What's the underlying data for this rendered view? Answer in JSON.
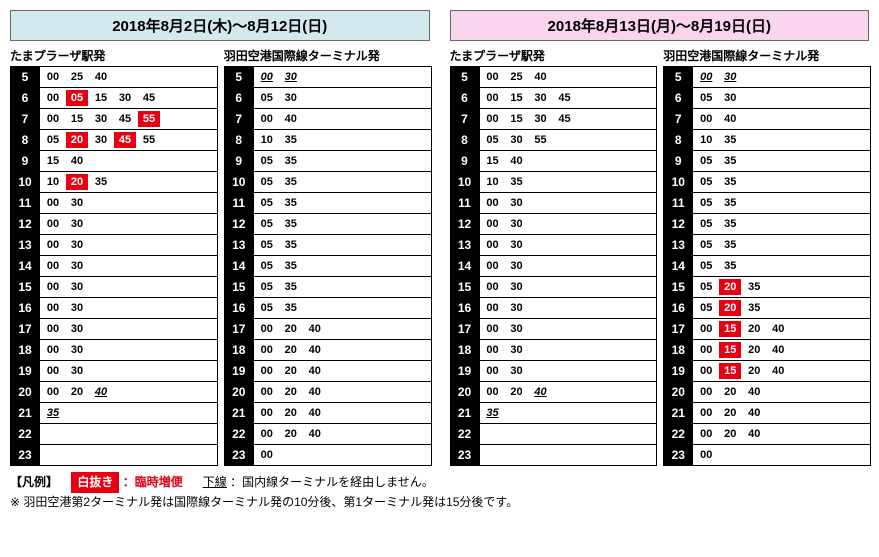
{
  "blocks": [
    {
      "header_class": "blue",
      "date_title": "2018年8月2日(木)～8月12日(日)",
      "columns": [
        {
          "title": "たまプラーザ駅発",
          "rows": [
            {
              "h": "5",
              "m": [
                {
                  "t": "00"
                },
                {
                  "t": "25"
                },
                {
                  "t": "40"
                }
              ]
            },
            {
              "h": "6",
              "m": [
                {
                  "t": "00"
                },
                {
                  "t": "05",
                  "hl": true
                },
                {
                  "t": "15"
                },
                {
                  "t": "30"
                },
                {
                  "t": "45"
                }
              ]
            },
            {
              "h": "7",
              "m": [
                {
                  "t": "00"
                },
                {
                  "t": "15"
                },
                {
                  "t": "30"
                },
                {
                  "t": "45"
                },
                {
                  "t": "55",
                  "hl": true
                }
              ]
            },
            {
              "h": "8",
              "m": [
                {
                  "t": "05"
                },
                {
                  "t": "20",
                  "hl": true
                },
                {
                  "t": "30"
                },
                {
                  "t": "45",
                  "hl": true
                },
                {
                  "t": "55"
                }
              ]
            },
            {
              "h": "9",
              "m": [
                {
                  "t": "15"
                },
                {
                  "t": "40"
                }
              ]
            },
            {
              "h": "10",
              "m": [
                {
                  "t": "10"
                },
                {
                  "t": "20",
                  "hl": true
                },
                {
                  "t": "35"
                }
              ]
            },
            {
              "h": "11",
              "m": [
                {
                  "t": "00"
                },
                {
                  "t": "30"
                }
              ]
            },
            {
              "h": "12",
              "m": [
                {
                  "t": "00"
                },
                {
                  "t": "30"
                }
              ]
            },
            {
              "h": "13",
              "m": [
                {
                  "t": "00"
                },
                {
                  "t": "30"
                }
              ]
            },
            {
              "h": "14",
              "m": [
                {
                  "t": "00"
                },
                {
                  "t": "30"
                }
              ]
            },
            {
              "h": "15",
              "m": [
                {
                  "t": "00"
                },
                {
                  "t": "30"
                }
              ]
            },
            {
              "h": "16",
              "m": [
                {
                  "t": "00"
                },
                {
                  "t": "30"
                }
              ]
            },
            {
              "h": "17",
              "m": [
                {
                  "t": "00"
                },
                {
                  "t": "30"
                }
              ]
            },
            {
              "h": "18",
              "m": [
                {
                  "t": "00"
                },
                {
                  "t": "30"
                }
              ]
            },
            {
              "h": "19",
              "m": [
                {
                  "t": "00"
                },
                {
                  "t": "30"
                }
              ]
            },
            {
              "h": "20",
              "m": [
                {
                  "t": "00"
                },
                {
                  "t": "20"
                },
                {
                  "t": "40",
                  "u": true
                }
              ]
            },
            {
              "h": "21",
              "m": [
                {
                  "t": "35",
                  "u": true
                }
              ]
            },
            {
              "h": "22",
              "m": []
            },
            {
              "h": "23",
              "m": []
            }
          ]
        },
        {
          "title": "羽田空港国際線ターミナル発",
          "rows": [
            {
              "h": "5",
              "m": [
                {
                  "t": "00",
                  "u": true
                },
                {
                  "t": "30",
                  "u": true
                }
              ]
            },
            {
              "h": "6",
              "m": [
                {
                  "t": "05"
                },
                {
                  "t": "30"
                }
              ]
            },
            {
              "h": "7",
              "m": [
                {
                  "t": "00"
                },
                {
                  "t": "40"
                }
              ]
            },
            {
              "h": "8",
              "m": [
                {
                  "t": "10"
                },
                {
                  "t": "35"
                }
              ]
            },
            {
              "h": "9",
              "m": [
                {
                  "t": "05"
                },
                {
                  "t": "35"
                }
              ]
            },
            {
              "h": "10",
              "m": [
                {
                  "t": "05"
                },
                {
                  "t": "35"
                }
              ]
            },
            {
              "h": "11",
              "m": [
                {
                  "t": "05"
                },
                {
                  "t": "35"
                }
              ]
            },
            {
              "h": "12",
              "m": [
                {
                  "t": "05"
                },
                {
                  "t": "35"
                }
              ]
            },
            {
              "h": "13",
              "m": [
                {
                  "t": "05"
                },
                {
                  "t": "35"
                }
              ]
            },
            {
              "h": "14",
              "m": [
                {
                  "t": "05"
                },
                {
                  "t": "35"
                }
              ]
            },
            {
              "h": "15",
              "m": [
                {
                  "t": "05"
                },
                {
                  "t": "35"
                }
              ]
            },
            {
              "h": "16",
              "m": [
                {
                  "t": "05"
                },
                {
                  "t": "35"
                }
              ]
            },
            {
              "h": "17",
              "m": [
                {
                  "t": "00"
                },
                {
                  "t": "20"
                },
                {
                  "t": "40"
                }
              ]
            },
            {
              "h": "18",
              "m": [
                {
                  "t": "00"
                },
                {
                  "t": "20"
                },
                {
                  "t": "40"
                }
              ]
            },
            {
              "h": "19",
              "m": [
                {
                  "t": "00"
                },
                {
                  "t": "20"
                },
                {
                  "t": "40"
                }
              ]
            },
            {
              "h": "20",
              "m": [
                {
                  "t": "00"
                },
                {
                  "t": "20"
                },
                {
                  "t": "40"
                }
              ]
            },
            {
              "h": "21",
              "m": [
                {
                  "t": "00"
                },
                {
                  "t": "20"
                },
                {
                  "t": "40"
                }
              ]
            },
            {
              "h": "22",
              "m": [
                {
                  "t": "00"
                },
                {
                  "t": "20"
                },
                {
                  "t": "40"
                }
              ]
            },
            {
              "h": "23",
              "m": [
                {
                  "t": "00"
                }
              ]
            }
          ]
        }
      ]
    },
    {
      "header_class": "pink",
      "date_title": "2018年8月13日(月)～8月19日(日)",
      "columns": [
        {
          "title": "たまプラーザ駅発",
          "rows": [
            {
              "h": "5",
              "m": [
                {
                  "t": "00"
                },
                {
                  "t": "25"
                },
                {
                  "t": "40"
                }
              ]
            },
            {
              "h": "6",
              "m": [
                {
                  "t": "00"
                },
                {
                  "t": "15"
                },
                {
                  "t": "30"
                },
                {
                  "t": "45"
                }
              ]
            },
            {
              "h": "7",
              "m": [
                {
                  "t": "00"
                },
                {
                  "t": "15"
                },
                {
                  "t": "30"
                },
                {
                  "t": "45"
                }
              ]
            },
            {
              "h": "8",
              "m": [
                {
                  "t": "05"
                },
                {
                  "t": "30"
                },
                {
                  "t": "55"
                }
              ]
            },
            {
              "h": "9",
              "m": [
                {
                  "t": "15"
                },
                {
                  "t": "40"
                }
              ]
            },
            {
              "h": "10",
              "m": [
                {
                  "t": "10"
                },
                {
                  "t": "35"
                }
              ]
            },
            {
              "h": "11",
              "m": [
                {
                  "t": "00"
                },
                {
                  "t": "30"
                }
              ]
            },
            {
              "h": "12",
              "m": [
                {
                  "t": "00"
                },
                {
                  "t": "30"
                }
              ]
            },
            {
              "h": "13",
              "m": [
                {
                  "t": "00"
                },
                {
                  "t": "30"
                }
              ]
            },
            {
              "h": "14",
              "m": [
                {
                  "t": "00"
                },
                {
                  "t": "30"
                }
              ]
            },
            {
              "h": "15",
              "m": [
                {
                  "t": "00"
                },
                {
                  "t": "30"
                }
              ]
            },
            {
              "h": "16",
              "m": [
                {
                  "t": "00"
                },
                {
                  "t": "30"
                }
              ]
            },
            {
              "h": "17",
              "m": [
                {
                  "t": "00"
                },
                {
                  "t": "30"
                }
              ]
            },
            {
              "h": "18",
              "m": [
                {
                  "t": "00"
                },
                {
                  "t": "30"
                }
              ]
            },
            {
              "h": "19",
              "m": [
                {
                  "t": "00"
                },
                {
                  "t": "30"
                }
              ]
            },
            {
              "h": "20",
              "m": [
                {
                  "t": "00"
                },
                {
                  "t": "20"
                },
                {
                  "t": "40",
                  "u": true
                }
              ]
            },
            {
              "h": "21",
              "m": [
                {
                  "t": "35",
                  "u": true
                }
              ]
            },
            {
              "h": "22",
              "m": []
            },
            {
              "h": "23",
              "m": []
            }
          ]
        },
        {
          "title": "羽田空港国際線ターミナル発",
          "rows": [
            {
              "h": "5",
              "m": [
                {
                  "t": "00",
                  "u": true
                },
                {
                  "t": "30",
                  "u": true
                }
              ]
            },
            {
              "h": "6",
              "m": [
                {
                  "t": "05"
                },
                {
                  "t": "30"
                }
              ]
            },
            {
              "h": "7",
              "m": [
                {
                  "t": "00"
                },
                {
                  "t": "40"
                }
              ]
            },
            {
              "h": "8",
              "m": [
                {
                  "t": "10"
                },
                {
                  "t": "35"
                }
              ]
            },
            {
              "h": "9",
              "m": [
                {
                  "t": "05"
                },
                {
                  "t": "35"
                }
              ]
            },
            {
              "h": "10",
              "m": [
                {
                  "t": "05"
                },
                {
                  "t": "35"
                }
              ]
            },
            {
              "h": "11",
              "m": [
                {
                  "t": "05"
                },
                {
                  "t": "35"
                }
              ]
            },
            {
              "h": "12",
              "m": [
                {
                  "t": "05"
                },
                {
                  "t": "35"
                }
              ]
            },
            {
              "h": "13",
              "m": [
                {
                  "t": "05"
                },
                {
                  "t": "35"
                }
              ]
            },
            {
              "h": "14",
              "m": [
                {
                  "t": "05"
                },
                {
                  "t": "35"
                }
              ]
            },
            {
              "h": "15",
              "m": [
                {
                  "t": "05"
                },
                {
                  "t": "20",
                  "hl": true
                },
                {
                  "t": "35"
                }
              ]
            },
            {
              "h": "16",
              "m": [
                {
                  "t": "05"
                },
                {
                  "t": "20",
                  "hl": true
                },
                {
                  "t": "35"
                }
              ]
            },
            {
              "h": "17",
              "m": [
                {
                  "t": "00"
                },
                {
                  "t": "15",
                  "hl": true
                },
                {
                  "t": "20"
                },
                {
                  "t": "40"
                }
              ]
            },
            {
              "h": "18",
              "m": [
                {
                  "t": "00"
                },
                {
                  "t": "15",
                  "hl": true
                },
                {
                  "t": "20"
                },
                {
                  "t": "40"
                }
              ]
            },
            {
              "h": "19",
              "m": [
                {
                  "t": "00"
                },
                {
                  "t": "15",
                  "hl": true
                },
                {
                  "t": "20"
                },
                {
                  "t": "40"
                }
              ]
            },
            {
              "h": "20",
              "m": [
                {
                  "t": "00"
                },
                {
                  "t": "20"
                },
                {
                  "t": "40"
                }
              ]
            },
            {
              "h": "21",
              "m": [
                {
                  "t": "00"
                },
                {
                  "t": "20"
                },
                {
                  "t": "40"
                }
              ]
            },
            {
              "h": "22",
              "m": [
                {
                  "t": "00"
                },
                {
                  "t": "20"
                },
                {
                  "t": "40"
                }
              ]
            },
            {
              "h": "23",
              "m": [
                {
                  "t": "00"
                }
              ]
            }
          ]
        }
      ]
    }
  ],
  "legend": {
    "label": "【凡例】",
    "box_text": "白抜き",
    "extra_label": "：臨時増便",
    "underline_label": "下線",
    "underline_desc": "：国内線ターミナルを経由しません。",
    "note": "※ 羽田空港第2ターミナル発は国際線ターミナル発の10分後、第1ターミナル発は15分後です。"
  }
}
